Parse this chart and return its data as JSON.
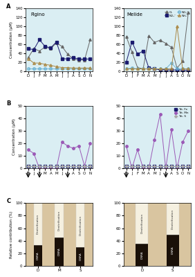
{
  "months": [
    "D",
    "J",
    "F",
    "M",
    "A",
    "M",
    "J",
    "J",
    "A",
    "S",
    "O",
    "N"
  ],
  "figino_A": {
    "O2": [
      30,
      50,
      45,
      54,
      50,
      63,
      55,
      38,
      27,
      25,
      25,
      70
    ],
    "NO3": [
      50,
      48,
      70,
      55,
      52,
      65,
      28,
      27,
      30,
      27,
      27,
      27
    ],
    "NO2": [
      5,
      5,
      5,
      5,
      5,
      5,
      5,
      5,
      5,
      5,
      5,
      5
    ],
    "NH4": [
      28,
      18,
      18,
      15,
      13,
      10,
      8,
      8,
      7,
      7,
      7,
      7
    ]
  },
  "melide_A": {
    "O2": [
      77,
      43,
      8,
      5,
      79,
      64,
      69,
      62,
      53,
      7,
      22,
      130
    ],
    "NO3": [
      20,
      65,
      38,
      45,
      7,
      5,
      3,
      3,
      2,
      3,
      2,
      2
    ],
    "NO2": [
      5,
      7,
      5,
      5,
      5,
      5,
      5,
      5,
      18,
      5,
      5,
      5
    ],
    "NH4": [
      5,
      5,
      5,
      5,
      5,
      5,
      5,
      5,
      5,
      100,
      5,
      5
    ]
  },
  "figino_B": {
    "Tot_Fe": [
      2,
      2,
      2,
      2,
      2,
      2,
      2,
      2,
      2,
      2,
      2,
      2
    ],
    "Tot_Mn": [
      15,
      12,
      0,
      0,
      0,
      0,
      21,
      18,
      16,
      18,
      2,
      20
    ],
    "Tot_S": [
      2,
      2,
      2,
      2,
      2,
      2,
      2,
      2,
      2,
      2,
      2,
      2
    ]
  },
  "melide_B": {
    "Tot_Fe": [
      2,
      2,
      2,
      2,
      2,
      2,
      2,
      2,
      2,
      2,
      2,
      2
    ],
    "Tot_Mn": [
      18,
      0,
      15,
      0,
      0,
      23,
      43,
      0,
      31,
      0,
      21,
      30
    ],
    "Tot_S": [
      2,
      2,
      2,
      2,
      2,
      2,
      2,
      2,
      2,
      2,
      2,
      2
    ]
  },
  "arrows_figino": [
    0,
    2,
    7
  ],
  "arrows_melide": [
    0,
    7
  ],
  "figino_C": {
    "categories": [
      "D",
      "M",
      "S"
    ],
    "DNRA": [
      33,
      45,
      30
    ],
    "Denitrification": [
      67,
      55,
      70
    ]
  },
  "melide_C": {
    "categories": [
      "D",
      "S"
    ],
    "DNRA": [
      35,
      50
    ],
    "Denitrification": [
      65,
      50
    ]
  },
  "bg_light_blue": "#daeef3",
  "bg_tan": "#d9c5a0",
  "bar_dnra": "#1a1008",
  "bar_denitrification": "#f5f0e0",
  "color_O2": "#666666",
  "color_NO3": "#1a1a6e",
  "color_NO2": "#6db3d4",
  "color_NH4": "#aa8844",
  "color_TotFe": "#1a1a6e",
  "color_TotMn": "#9b59b6",
  "color_TotS": "#aaaaaa"
}
